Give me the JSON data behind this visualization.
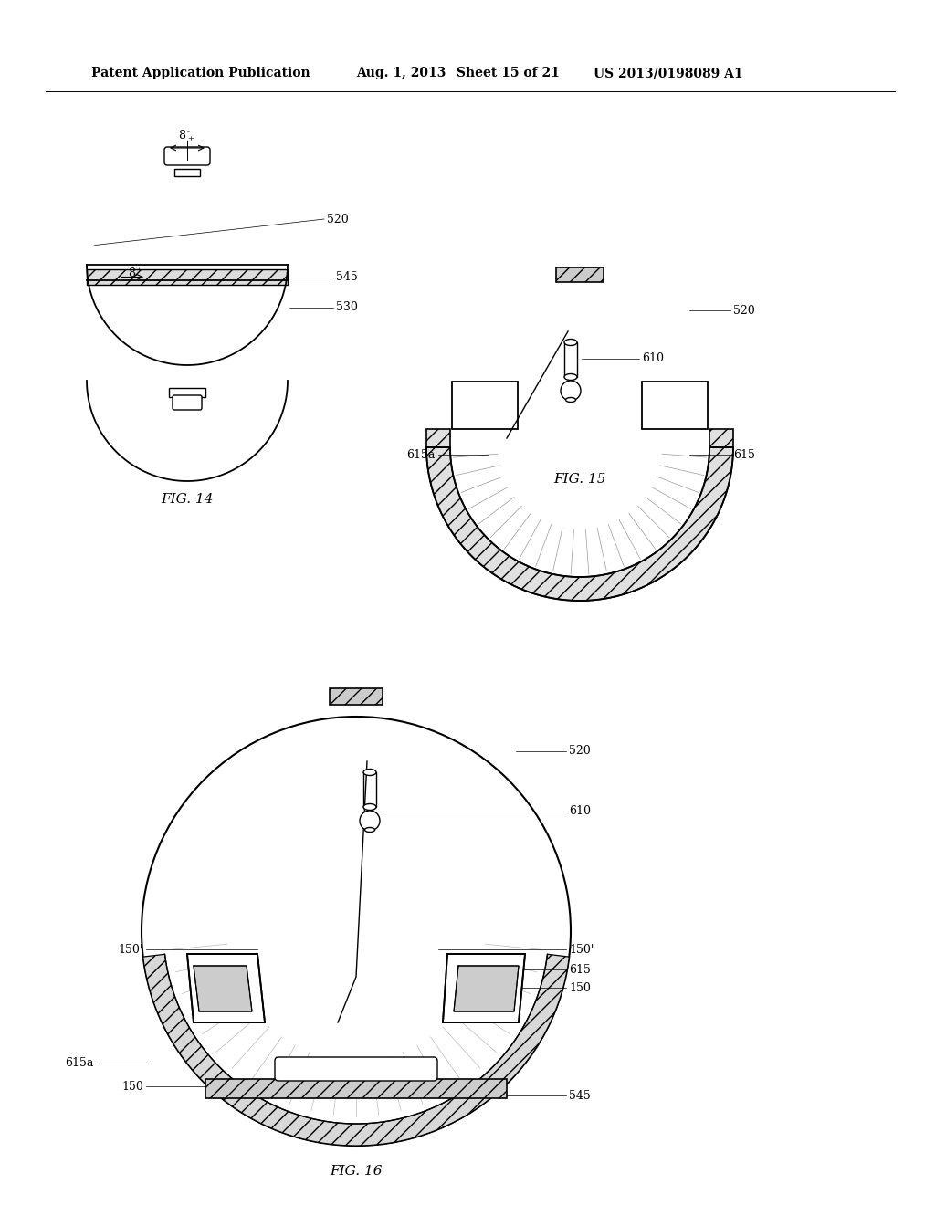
{
  "bg_color": "#ffffff",
  "header_text": "Patent Application Publication",
  "header_date": "Aug. 1, 2013",
  "header_sheet": "Sheet 15 of 21",
  "header_patent": "US 2013/0198089 A1",
  "fig14_label": "FIG. 14",
  "fig15_label": "FIG. 15",
  "fig16_label": "FIG. 16"
}
